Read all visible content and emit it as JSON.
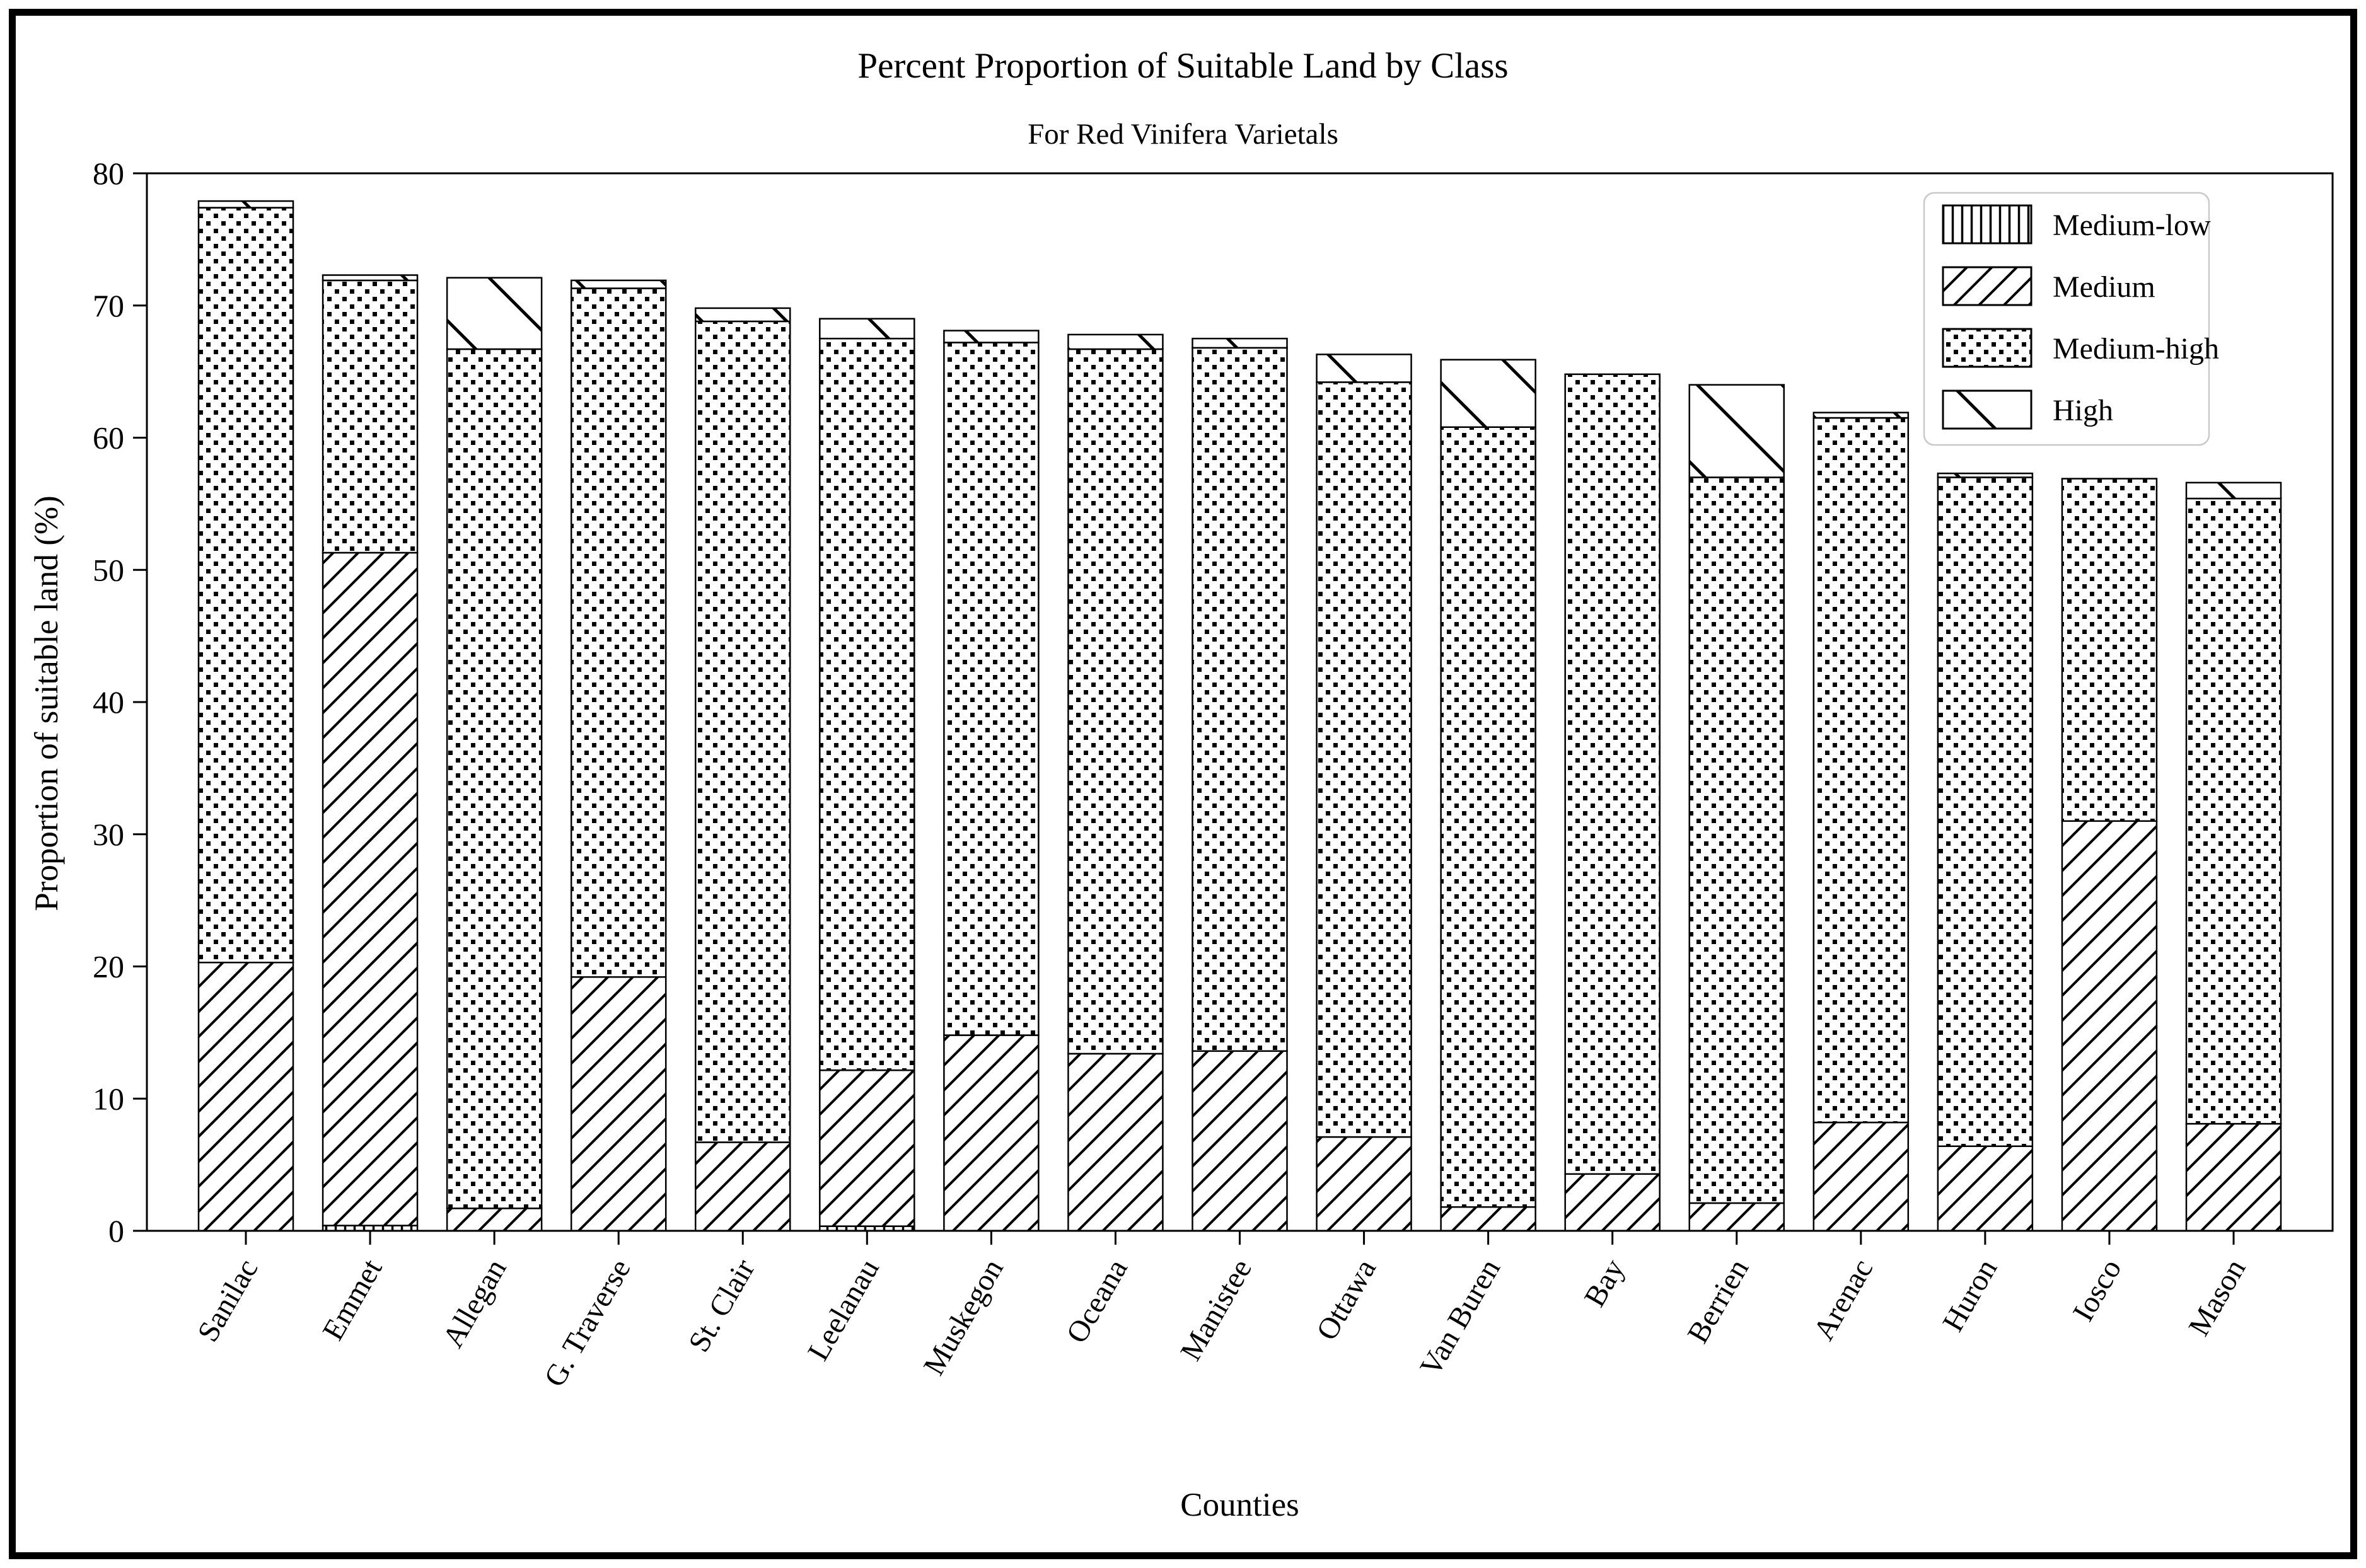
{
  "title": "Percent Proportion of Suitable Land by Class",
  "subtitle": "For Red Vinifera Varietals",
  "colors": {
    "foreground": "#000000",
    "background": "#ffffff",
    "legend_border": "#c9c9c9"
  },
  "chart_data": {
    "type": "bar",
    "stacked": true,
    "title": "Percent Proportion of Suitable Land by Class",
    "subtitle": "For Red Vinifera Varietals",
    "xlabel": "Counties",
    "ylabel": "Proportion of suitable land (%)",
    "ylim": [
      0,
      80
    ],
    "yticks": [
      0,
      10,
      20,
      30,
      40,
      50,
      60,
      70,
      80
    ],
    "grid": false,
    "legend_position": "upper right",
    "categories": [
      "Sanilac",
      "Emmet",
      "Allegan",
      "G. Traverse",
      "St. Clair",
      "Leelanau",
      "Muskegon",
      "Oceana",
      "Manistee",
      "Ottawa",
      "Van Buren",
      "Bay",
      "Berrien",
      "Arenac",
      "Huron",
      "Iosco",
      "Mason"
    ],
    "series": [
      {
        "name": "Medium-low",
        "pattern": "vertical-lines",
        "values": [
          0,
          0.4,
          0,
          0,
          0,
          0.35,
          0,
          0,
          0,
          0,
          0,
          0,
          0,
          0,
          0,
          0,
          0
        ]
      },
      {
        "name": "Medium",
        "pattern": "diagonal-forward",
        "values": [
          20.3,
          50.9,
          1.7,
          19.2,
          6.7,
          11.8,
          14.8,
          13.4,
          13.6,
          7.1,
          1.8,
          4.3,
          2.1,
          8.2,
          6.4,
          31.0,
          8.1
        ]
      },
      {
        "name": "Medium-high",
        "pattern": "dots",
        "values": [
          57.1,
          20.6,
          65.0,
          52.1,
          62.1,
          55.35,
          52.4,
          53.3,
          53.2,
          57.1,
          59.0,
          60.5,
          54.9,
          53.3,
          50.6,
          25.9,
          47.3
        ]
      },
      {
        "name": "High",
        "pattern": "diagonal-back",
        "values": [
          0.5,
          0.4,
          5.4,
          0.6,
          1.0,
          1.5,
          0.9,
          1.1,
          0.7,
          2.1,
          5.1,
          0,
          7.0,
          0.4,
          0.3,
          0,
          1.2
        ]
      }
    ],
    "bar_totals": [
      77.9,
      72.3,
      72.1,
      71.9,
      69.8,
      69.0,
      68.1,
      67.8,
      67.5,
      66.3,
      65.9,
      64.8,
      64.0,
      61.9,
      57.3,
      56.9,
      56.6
    ]
  }
}
